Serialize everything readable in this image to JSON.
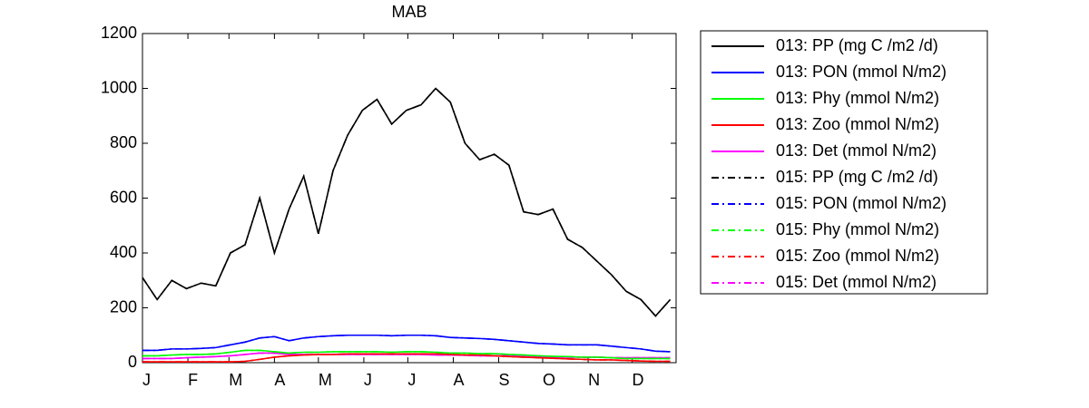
{
  "chart_data": {
    "type": "line",
    "title": "MAB",
    "x": [
      1,
      11,
      21,
      31,
      41,
      51,
      61,
      71,
      81,
      91,
      101,
      111,
      121,
      131,
      141,
      151,
      161,
      171,
      181,
      191,
      201,
      211,
      221,
      231,
      241,
      251,
      261,
      271,
      281,
      291,
      301,
      311,
      321,
      331,
      341,
      351,
      361
    ],
    "xlim": [
      1,
      365
    ],
    "xticks": [
      {
        "value": 1,
        "label": "J"
      },
      {
        "value": 32,
        "label": "F"
      },
      {
        "value": 60,
        "label": "M"
      },
      {
        "value": 91,
        "label": "A"
      },
      {
        "value": 121,
        "label": "M"
      },
      {
        "value": 152,
        "label": "J"
      },
      {
        "value": 182,
        "label": "J"
      },
      {
        "value": 213,
        "label": "A"
      },
      {
        "value": 244,
        "label": "S"
      },
      {
        "value": 274,
        "label": "O"
      },
      {
        "value": 305,
        "label": "N"
      },
      {
        "value": 335,
        "label": "D"
      }
    ],
    "ylim": [
      0,
      1200
    ],
    "yticks": [
      0,
      200,
      400,
      600,
      800,
      1000,
      1200
    ],
    "series": [
      {
        "name": "013: PP (mg C /m2 /d)",
        "color": "#000000",
        "linestyle": "solid",
        "values": [
          310,
          230,
          300,
          270,
          290,
          280,
          400,
          430,
          600,
          400,
          560,
          680,
          470,
          700,
          830,
          920,
          960,
          870,
          920,
          940,
          1000,
          950,
          800,
          740,
          760,
          720,
          550,
          540,
          560,
          450,
          420,
          370,
          320,
          260,
          230,
          170,
          230
        ]
      },
      {
        "name": "013: PON (mmol N/m2)",
        "color": "#0000ff",
        "linestyle": "solid",
        "values": [
          45,
          45,
          50,
          50,
          52,
          55,
          65,
          75,
          90,
          95,
          80,
          90,
          95,
          98,
          100,
          100,
          100,
          98,
          100,
          100,
          98,
          92,
          90,
          88,
          85,
          80,
          75,
          70,
          68,
          65,
          65,
          65,
          60,
          55,
          50,
          42,
          40
        ]
      },
      {
        "name": "013: Phy (mmol N/m2)",
        "color": "#00ff00",
        "linestyle": "solid",
        "values": [
          25,
          25,
          28,
          30,
          30,
          32,
          38,
          45,
          45,
          40,
          35,
          38,
          38,
          40,
          40,
          40,
          40,
          38,
          40,
          40,
          38,
          35,
          35,
          33,
          33,
          30,
          28,
          25,
          23,
          22,
          20,
          20,
          18,
          15,
          15,
          15,
          15
        ]
      },
      {
        "name": "013: Zoo (mmol N/m2)",
        "color": "#ff0000",
        "linestyle": "solid",
        "values": [
          3,
          3,
          3,
          3,
          3,
          3,
          3,
          5,
          12,
          20,
          25,
          28,
          30,
          30,
          32,
          32,
          32,
          32,
          32,
          32,
          32,
          30,
          28,
          28,
          25,
          22,
          20,
          18,
          16,
          14,
          12,
          10,
          10,
          8,
          6,
          5,
          5
        ]
      },
      {
        "name": "013: Det (mmol N/m2)",
        "color": "#ff00ff",
        "linestyle": "solid",
        "values": [
          15,
          15,
          15,
          18,
          20,
          22,
          25,
          30,
          35,
          35,
          30,
          30,
          30,
          30,
          30,
          30,
          30,
          30,
          30,
          30,
          28,
          28,
          27,
          25,
          25,
          25,
          22,
          20,
          20,
          20,
          20,
          20,
          18,
          18,
          18,
          18,
          18
        ]
      },
      {
        "name": "015: PP (mg C /m2 /d)",
        "color": "#000000",
        "linestyle": "dashdot",
        "values": [
          310,
          230,
          300,
          270,
          290,
          280,
          400,
          430,
          600,
          400,
          560,
          680,
          470,
          700,
          830,
          920,
          960,
          870,
          920,
          940,
          1000,
          950,
          800,
          740,
          760,
          720,
          550,
          540,
          560,
          450,
          420,
          370,
          320,
          260,
          230,
          170,
          230
        ]
      },
      {
        "name": "015: PON (mmol N/m2)",
        "color": "#0000ff",
        "linestyle": "dashdot",
        "values": [
          45,
          45,
          50,
          50,
          52,
          55,
          65,
          75,
          90,
          95,
          80,
          90,
          95,
          98,
          100,
          100,
          100,
          98,
          100,
          100,
          98,
          92,
          90,
          88,
          85,
          80,
          75,
          70,
          68,
          65,
          65,
          65,
          60,
          55,
          50,
          42,
          40
        ]
      },
      {
        "name": "015: Phy (mmol N/m2)",
        "color": "#00ff00",
        "linestyle": "dashdot",
        "values": [
          25,
          25,
          28,
          30,
          30,
          32,
          38,
          45,
          45,
          40,
          35,
          38,
          38,
          40,
          40,
          40,
          40,
          38,
          40,
          40,
          38,
          35,
          35,
          33,
          33,
          30,
          28,
          25,
          23,
          22,
          20,
          20,
          18,
          15,
          15,
          15,
          15
        ]
      },
      {
        "name": "015: Zoo (mmol N/m2)",
        "color": "#ff0000",
        "linestyle": "dashdot",
        "values": [
          3,
          3,
          3,
          3,
          3,
          3,
          3,
          5,
          12,
          20,
          25,
          28,
          30,
          30,
          32,
          32,
          32,
          32,
          32,
          32,
          32,
          30,
          28,
          28,
          25,
          22,
          20,
          18,
          16,
          14,
          12,
          10,
          10,
          8,
          6,
          5,
          5
        ]
      },
      {
        "name": "015: Det (mmol N/m2)",
        "color": "#ff00ff",
        "linestyle": "dashdot",
        "values": [
          15,
          15,
          15,
          18,
          20,
          22,
          25,
          30,
          35,
          35,
          30,
          30,
          30,
          30,
          30,
          30,
          30,
          30,
          30,
          30,
          28,
          28,
          27,
          25,
          25,
          25,
          22,
          20,
          20,
          20,
          20,
          20,
          18,
          18,
          18,
          18,
          18
        ]
      }
    ]
  }
}
